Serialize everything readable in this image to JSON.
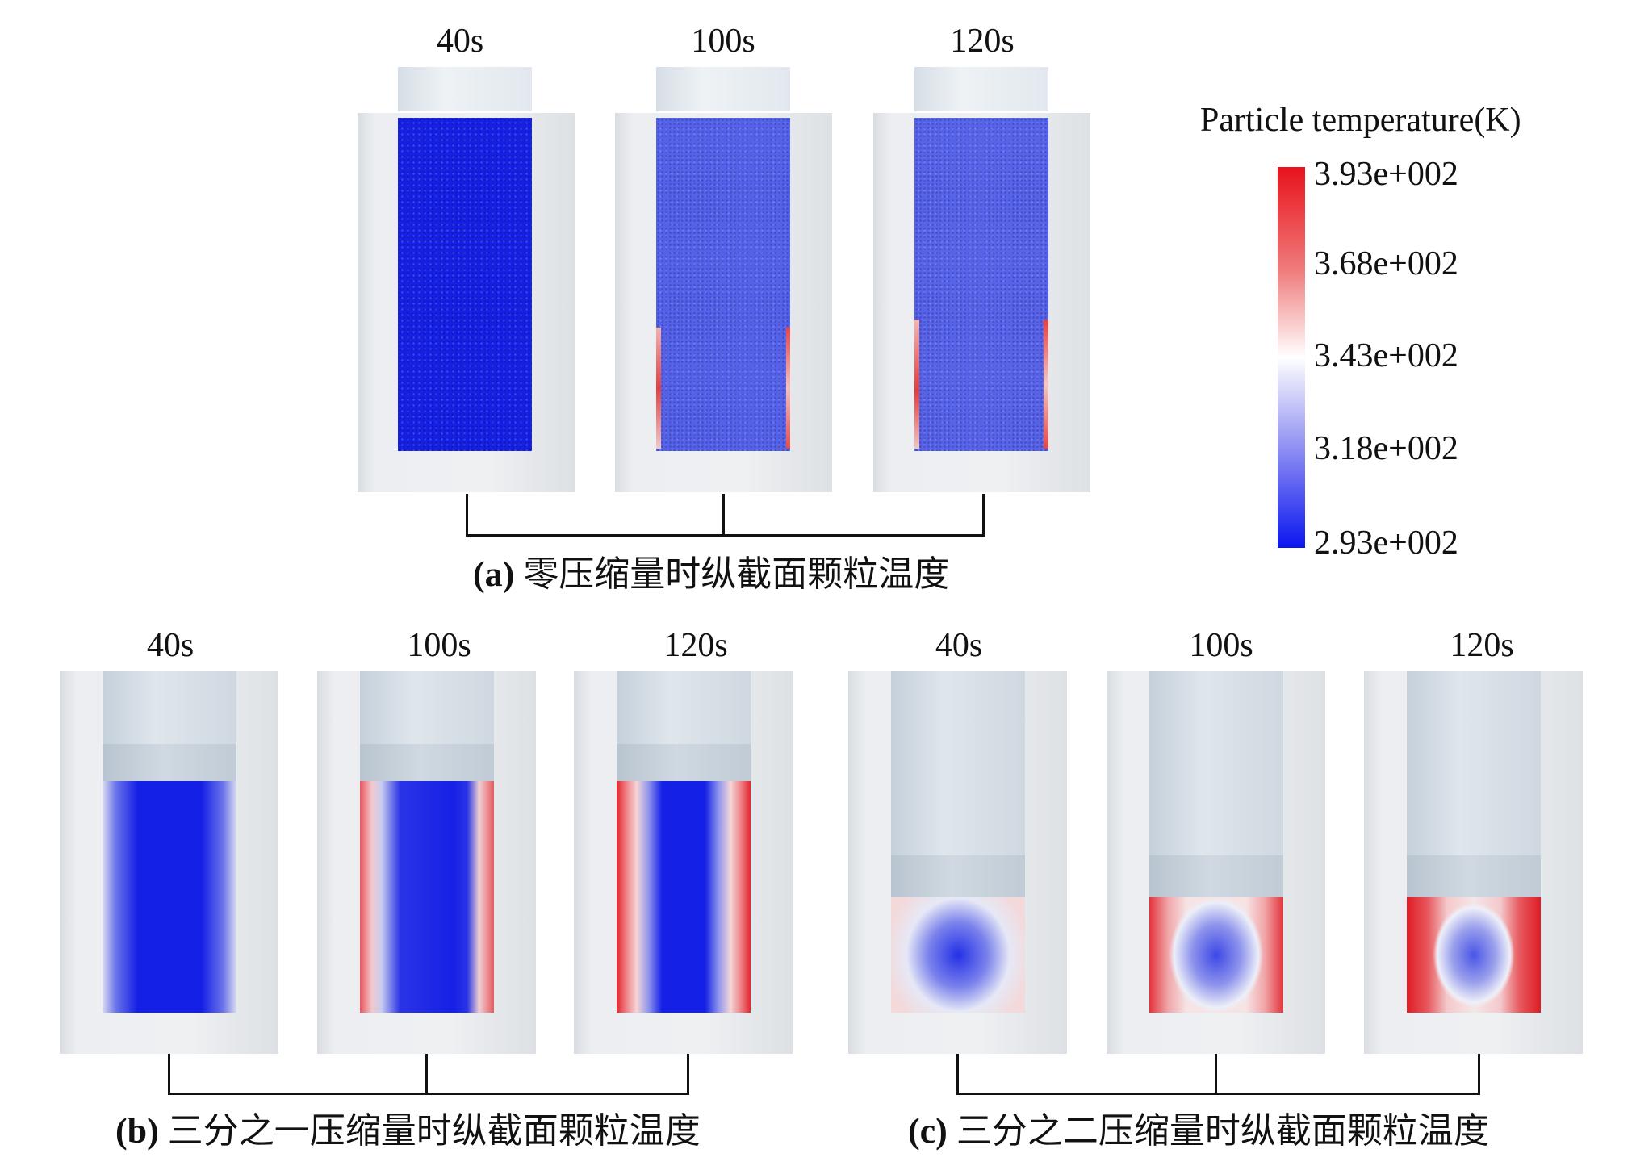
{
  "panels": [
    {
      "id": "a",
      "caption_letter": "(a)",
      "caption_text": "零压缩量时纵截面颗粒温度",
      "time_labels": [
        "40s",
        "100s",
        "120s"
      ],
      "wall_heating_level": [
        0.0,
        0.15,
        0.2
      ]
    },
    {
      "id": "b",
      "caption_letter": "(b)",
      "caption_text": "三分之一压缩量时纵截面颗粒温度",
      "time_labels": [
        "40s",
        "100s",
        "120s"
      ],
      "wall_heating_level": [
        0.35,
        0.7,
        0.9
      ]
    },
    {
      "id": "c",
      "caption_letter": "(c)",
      "caption_text": "三分之二压缩量时纵截面颗粒温度",
      "time_labels": [
        "40s",
        "100s",
        "120s"
      ],
      "wall_heating_level": [
        0.5,
        0.85,
        1.0
      ]
    }
  ],
  "legend": {
    "title": "Particle temperature(K)",
    "ticks": [
      "3.93e+002",
      "3.68e+002",
      "3.43e+002",
      "3.18e+002",
      "2.93e+002"
    ],
    "colors": {
      "max": "#e8121b",
      "mid": "#ffffff",
      "min": "#0a16ef"
    }
  }
}
